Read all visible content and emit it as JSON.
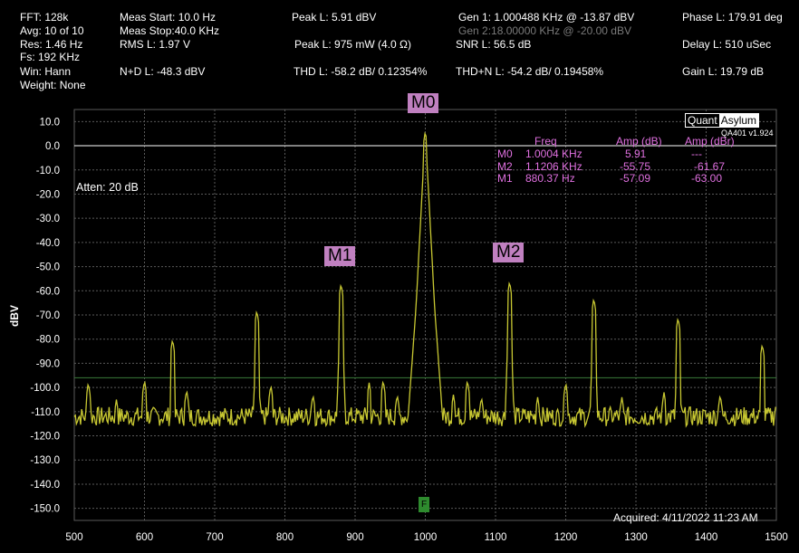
{
  "header": {
    "fft": "FFT: 128k",
    "avg": "Avg: 10 of 10",
    "res": "Res: 1.46 Hz",
    "fs": "Fs: 192 KHz",
    "win": "Win: Hann",
    "weight": "Weight: None",
    "meas_start": "Meas Start: 10.0 Hz",
    "meas_stop": "Meas Stop:40.0 KHz",
    "rms": "RMS L: 1.97 V",
    "nd": "N+D L: -48.3 dBV",
    "peak_l": "Peak L: 5.91 dBV",
    "peak_w": "Peak L: 975 mW (4.0 Ω)",
    "thd": "THD L: -58.2 dB/ 0.12354%",
    "gen1": "Gen 1: 1.000488 KHz @ -13.87  dBV",
    "gen2": "Gen 2:18.00000 KHz @ -20.00  dBV",
    "snr": "SNR L: 56.5 dB",
    "thdn": "THD+N L: -54.2 dB/ 0.19458%",
    "phase": "Phase L: 179.91 deg",
    "delay": "Delay L: 510 uSec",
    "gain": "Gain L: 19.79 dB"
  },
  "brand": {
    "quant": "Quant",
    "asylum": "Asylum",
    "version": "QA401 v1.924"
  },
  "atten": "Atten: 20 dB",
  "acquired": "Acquired: 4/11/2022  11:23 AM",
  "f_marker": "F",
  "markers": {
    "m0": "M0",
    "m1": "M1",
    "m2": "M2",
    "table_headers": [
      "Freq",
      "Amp (dB)",
      "Amp (dBr)"
    ],
    "rows": [
      {
        "name": "M0",
        "freq": "1.0004 KHz",
        "amp": "5.91",
        "ampr": "---"
      },
      {
        "name": "M2",
        "freq": "1.1206 KHz",
        "amp": "-55.75",
        "ampr": "-61.67"
      },
      {
        "name": "M1",
        "freq": "880.37 Hz",
        "amp": "-57.09",
        "ampr": "-63.00"
      }
    ]
  },
  "colors": {
    "trace": "#c8c832",
    "grid": "#5a5a5a",
    "marker": "#c080c0",
    "marker_text": "#e070e0",
    "ref_line": "#3a7a3a"
  },
  "chart_data": {
    "type": "line",
    "xlim": [
      500,
      1500
    ],
    "ylim": [
      -155,
      15
    ],
    "ylabel": "dBV",
    "x_ticks": [
      500,
      600,
      700,
      800,
      900,
      1000,
      1100,
      1200,
      1300,
      1400,
      1500
    ],
    "y_ticks": [
      10,
      0,
      -10,
      -20,
      -30,
      -40,
      -50,
      -60,
      -70,
      -80,
      -90,
      -100,
      -110,
      -120,
      -130,
      -140,
      -150
    ],
    "reference_lines": [
      0,
      -96
    ],
    "noise_floor": -112,
    "peaks": [
      {
        "x": 520,
        "y": -98
      },
      {
        "x": 560,
        "y": -105
      },
      {
        "x": 600,
        "y": -97
      },
      {
        "x": 640,
        "y": -80
      },
      {
        "x": 660,
        "y": -101
      },
      {
        "x": 760,
        "y": -68
      },
      {
        "x": 780,
        "y": -99
      },
      {
        "x": 840,
        "y": -103
      },
      {
        "x": 880,
        "y": -57
      },
      {
        "x": 920,
        "y": -98
      },
      {
        "x": 940,
        "y": -97
      },
      {
        "x": 960,
        "y": -103
      },
      {
        "x": 1000,
        "y": 6
      },
      {
        "x": 1040,
        "y": -103
      },
      {
        "x": 1060,
        "y": -97
      },
      {
        "x": 1080,
        "y": -104
      },
      {
        "x": 1120,
        "y": -56
      },
      {
        "x": 1160,
        "y": -104
      },
      {
        "x": 1200,
        "y": -98
      },
      {
        "x": 1240,
        "y": -63
      },
      {
        "x": 1280,
        "y": -104
      },
      {
        "x": 1340,
        "y": -102
      },
      {
        "x": 1360,
        "y": -71
      },
      {
        "x": 1420,
        "y": -103
      },
      {
        "x": 1480,
        "y": -82
      },
      {
        "x": 1500,
        "y": -106
      }
    ]
  }
}
